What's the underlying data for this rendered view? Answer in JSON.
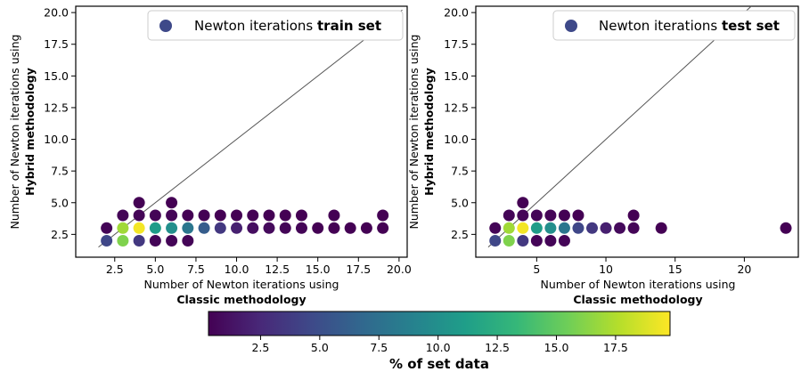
{
  "colormap": [
    "#440154",
    "#482878",
    "#3e4989",
    "#31688e",
    "#26828e",
    "#1f9e89",
    "#35b779",
    "#6ece58",
    "#b5de2b",
    "#fde725"
  ],
  "line_color": "#555555",
  "chart_data": [
    {
      "type": "scatter",
      "title": "",
      "legend": {
        "prefix": "Newton iterations ",
        "bold": "train set",
        "marker_color": "#3e4989",
        "position": "top-right"
      },
      "xlabel_line1": "Number of Newton iterations using",
      "xlabel_line2": "Classic methodology",
      "ylabel_line1": "Number of Newton iterations using",
      "ylabel_line2": "Hybrid methodology",
      "xlim": [
        0.1,
        20.5
      ],
      "ylim": [
        0.7,
        20.5
      ],
      "xticks": [
        2.5,
        5.0,
        7.5,
        10.0,
        12.5,
        15.0,
        17.5,
        20.0
      ],
      "xtick_labels": [
        "2.5",
        "5.0",
        "7.5",
        "10.0",
        "12.5",
        "15.0",
        "17.5",
        "20.0"
      ],
      "yticks": [
        2.5,
        5.0,
        7.5,
        10.0,
        12.5,
        15.0,
        17.5,
        20.0
      ],
      "ytick_labels": [
        "2.5",
        "5.0",
        "7.5",
        "10.0",
        "12.5",
        "15.0",
        "17.5",
        "20.0"
      ],
      "diagonal": [
        1.5,
        20.2
      ],
      "points": [
        {
          "x": 2,
          "y": 2,
          "pct": 4.5
        },
        {
          "x": 2,
          "y": 3,
          "pct": 0.5
        },
        {
          "x": 3,
          "y": 2,
          "pct": 16.0
        },
        {
          "x": 3,
          "y": 3,
          "pct": 17.0
        },
        {
          "x": 3,
          "y": 4,
          "pct": 0.5
        },
        {
          "x": 4,
          "y": 2,
          "pct": 3.5
        },
        {
          "x": 4,
          "y": 3,
          "pct": 19.5
        },
        {
          "x": 4,
          "y": 4,
          "pct": 0.5
        },
        {
          "x": 4,
          "y": 5,
          "pct": 0.3
        },
        {
          "x": 5,
          "y": 2,
          "pct": 0.5
        },
        {
          "x": 5,
          "y": 3,
          "pct": 11.0
        },
        {
          "x": 5,
          "y": 4,
          "pct": 0.5
        },
        {
          "x": 6,
          "y": 2,
          "pct": 0.5
        },
        {
          "x": 6,
          "y": 3,
          "pct": 10.0
        },
        {
          "x": 6,
          "y": 4,
          "pct": 0.5
        },
        {
          "x": 6,
          "y": 5,
          "pct": 0.3
        },
        {
          "x": 7,
          "y": 2,
          "pct": 0.5
        },
        {
          "x": 7,
          "y": 3,
          "pct": 8.0
        },
        {
          "x": 7,
          "y": 4,
          "pct": 0.3
        },
        {
          "x": 8,
          "y": 3,
          "pct": 6.0
        },
        {
          "x": 8,
          "y": 4,
          "pct": 0.3
        },
        {
          "x": 9,
          "y": 3,
          "pct": 3.5
        },
        {
          "x": 9,
          "y": 4,
          "pct": 0.3
        },
        {
          "x": 10,
          "y": 3,
          "pct": 2.0
        },
        {
          "x": 10,
          "y": 4,
          "pct": 0.3
        },
        {
          "x": 11,
          "y": 3,
          "pct": 1.0
        },
        {
          "x": 11,
          "y": 4,
          "pct": 0.3
        },
        {
          "x": 12,
          "y": 3,
          "pct": 0.8
        },
        {
          "x": 12,
          "y": 4,
          "pct": 0.3
        },
        {
          "x": 13,
          "y": 3,
          "pct": 0.5
        },
        {
          "x": 13,
          "y": 4,
          "pct": 0.3
        },
        {
          "x": 14,
          "y": 3,
          "pct": 0.5
        },
        {
          "x": 14,
          "y": 4,
          "pct": 0.3
        },
        {
          "x": 15,
          "y": 3,
          "pct": 0.3
        },
        {
          "x": 16,
          "y": 3,
          "pct": 0.3
        },
        {
          "x": 16,
          "y": 4,
          "pct": 0.3
        },
        {
          "x": 17,
          "y": 3,
          "pct": 0.3
        },
        {
          "x": 18,
          "y": 3,
          "pct": 0.3
        },
        {
          "x": 19,
          "y": 3,
          "pct": 0.3
        },
        {
          "x": 19,
          "y": 4,
          "pct": 0.3
        }
      ]
    },
    {
      "type": "scatter",
      "title": "",
      "legend": {
        "prefix": "Newton iterations ",
        "bold": "test set",
        "marker_color": "#3e4989",
        "position": "top-right"
      },
      "xlabel_line1": "Number of Newton iterations using",
      "xlabel_line2": "Classic methodology",
      "ylabel_line1": "Number of Newton iterations using",
      "ylabel_line2": "Hybrid methodology",
      "xlim": [
        0.6,
        23.9
      ],
      "ylim": [
        0.7,
        20.5
      ],
      "xticks": [
        5,
        10,
        15,
        20
      ],
      "xtick_labels": [
        "5",
        "10",
        "15",
        "20"
      ],
      "yticks": [
        2.5,
        5.0,
        7.5,
        10.0,
        12.5,
        15.0,
        17.5,
        20.0
      ],
      "ytick_labels": [
        "2.5",
        "5.0",
        "7.5",
        "10.0",
        "12.5",
        "15.0",
        "17.5",
        "20.0"
      ],
      "diagonal": [
        1.5,
        20.5
      ],
      "points": [
        {
          "x": 2,
          "y": 2,
          "pct": 4.5
        },
        {
          "x": 2,
          "y": 3,
          "pct": 0.5
        },
        {
          "x": 3,
          "y": 2,
          "pct": 16.0
        },
        {
          "x": 3,
          "y": 3,
          "pct": 17.0
        },
        {
          "x": 3,
          "y": 4,
          "pct": 0.5
        },
        {
          "x": 4,
          "y": 2,
          "pct": 3.5
        },
        {
          "x": 4,
          "y": 3,
          "pct": 19.5
        },
        {
          "x": 4,
          "y": 4,
          "pct": 0.5
        },
        {
          "x": 4,
          "y": 5,
          "pct": 0.3
        },
        {
          "x": 5,
          "y": 2,
          "pct": 0.5
        },
        {
          "x": 5,
          "y": 3,
          "pct": 11.0
        },
        {
          "x": 5,
          "y": 4,
          "pct": 0.5
        },
        {
          "x": 6,
          "y": 2,
          "pct": 0.5
        },
        {
          "x": 6,
          "y": 3,
          "pct": 10.0
        },
        {
          "x": 6,
          "y": 4,
          "pct": 0.5
        },
        {
          "x": 7,
          "y": 2,
          "pct": 0.5
        },
        {
          "x": 7,
          "y": 3,
          "pct": 8.0
        },
        {
          "x": 7,
          "y": 4,
          "pct": 0.3
        },
        {
          "x": 8,
          "y": 3,
          "pct": 4.5
        },
        {
          "x": 8,
          "y": 4,
          "pct": 0.3
        },
        {
          "x": 9,
          "y": 3,
          "pct": 3.5
        },
        {
          "x": 10,
          "y": 3,
          "pct": 2.0
        },
        {
          "x": 11,
          "y": 3,
          "pct": 0.8
        },
        {
          "x": 12,
          "y": 3,
          "pct": 0.5
        },
        {
          "x": 12,
          "y": 4,
          "pct": 0.3
        },
        {
          "x": 14,
          "y": 3,
          "pct": 0.3
        },
        {
          "x": 23,
          "y": 3,
          "pct": 0.3
        }
      ]
    }
  ],
  "colorbar": {
    "label": "% of set data",
    "min": 0.3,
    "max": 19.8,
    "ticks": [
      2.5,
      5.0,
      7.5,
      10.0,
      12.5,
      15.0,
      17.5
    ],
    "tick_labels": [
      "2.5",
      "5.0",
      "7.5",
      "10.0",
      "12.5",
      "15.0",
      "17.5"
    ]
  }
}
